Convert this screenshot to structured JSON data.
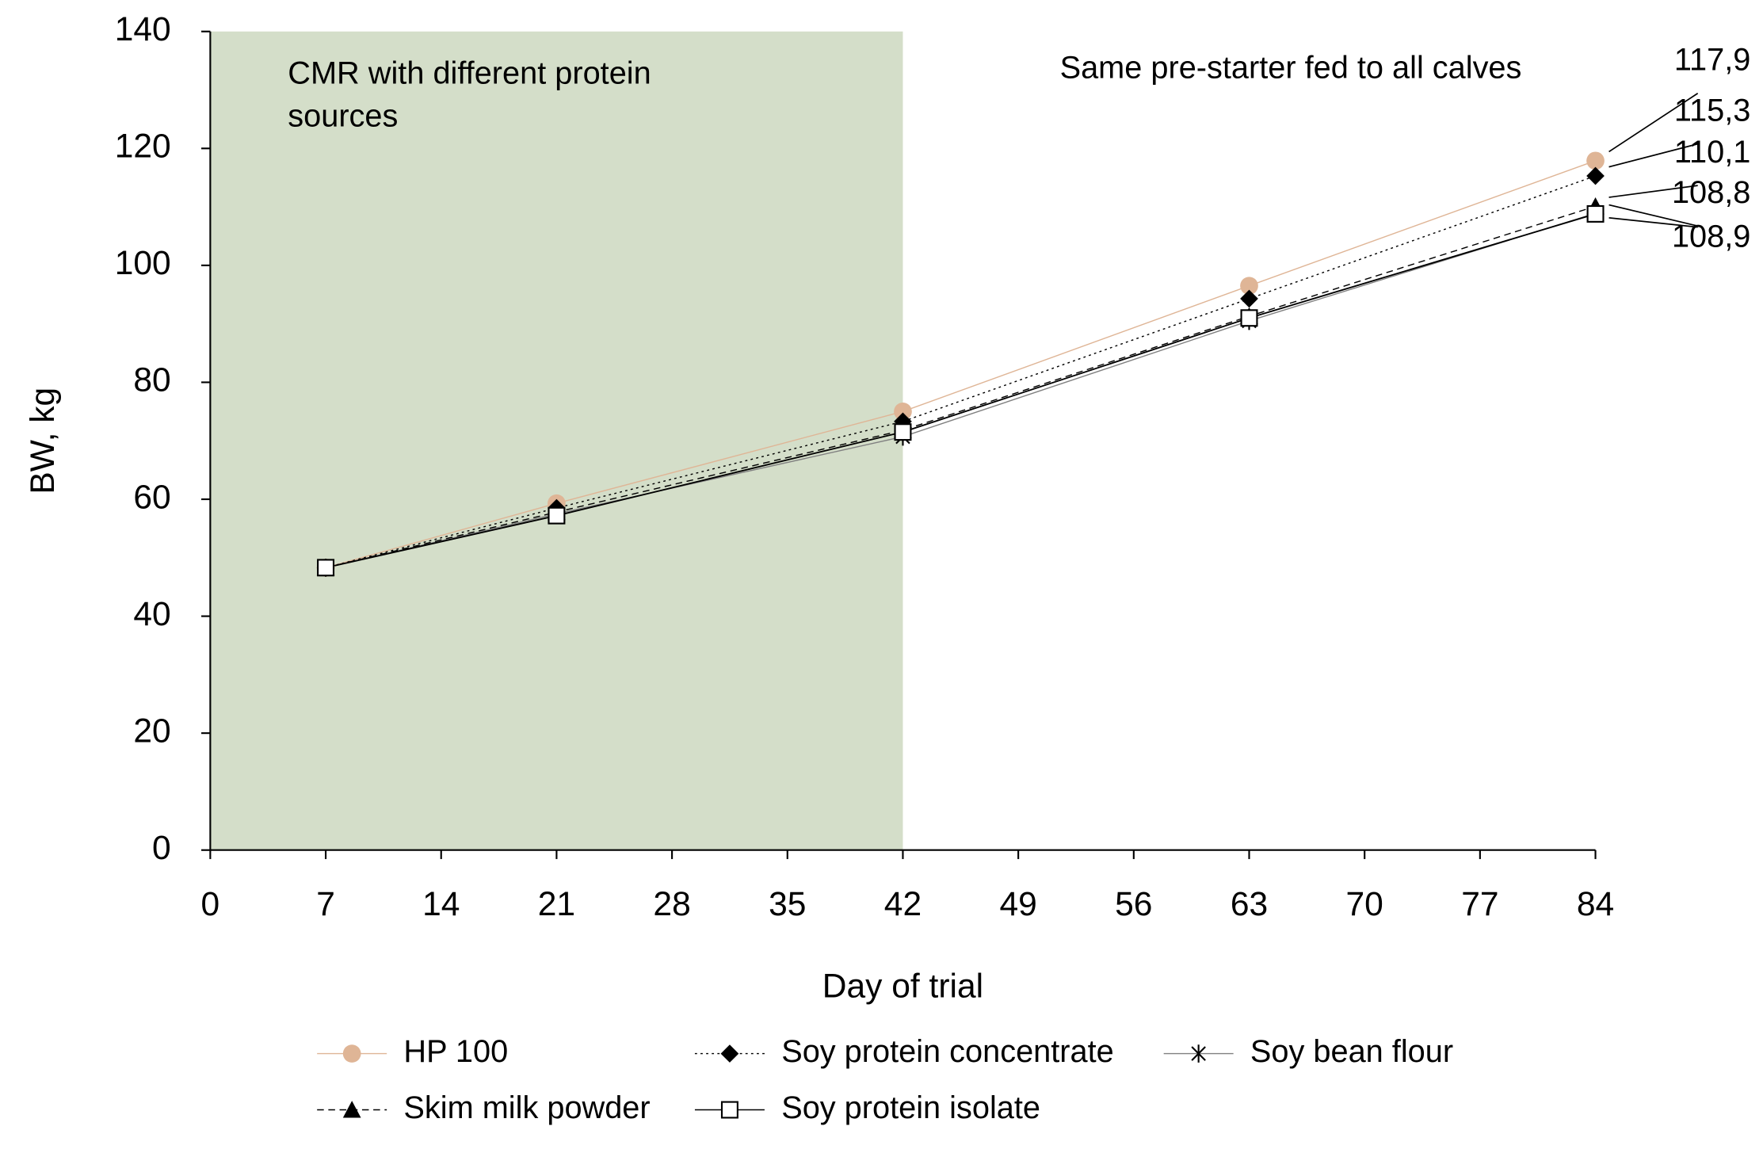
{
  "chart_data": {
    "type": "line",
    "x_label": "Day of trial",
    "y_label": "BW, kg",
    "x": [
      7,
      21,
      42,
      63,
      84
    ],
    "series": [
      {
        "name": "HP 100",
        "color": "#dfb596",
        "marker": "circle",
        "dash": "solid",
        "values": [
          48.3,
          59.3,
          75,
          96.5,
          117.9
        ],
        "value_labels": [
          null,
          null,
          null,
          null,
          "117,9"
        ]
      },
      {
        "name": "Soy protein concentrate",
        "color": "#000000",
        "marker": "diamond",
        "dash": "dotted",
        "values": [
          48.3,
          58.5,
          73.3,
          94.3,
          115.3
        ],
        "value_labels": [
          null,
          null,
          null,
          null,
          "115,3"
        ]
      },
      {
        "name": "Soy bean flour",
        "color": "#808080",
        "marker": "asterisk",
        "dash": "solid",
        "values": [
          48.3,
          57.5,
          70.7,
          90.5,
          108.9
        ],
        "value_labels": [
          null,
          null,
          null,
          null,
          "108,9"
        ]
      },
      {
        "name": "Skim milk powder",
        "color": "#000000",
        "marker": "triangle",
        "dash": "dashed",
        "values": [
          48.3,
          57.8,
          71.8,
          91.3,
          110.1
        ],
        "value_labels": [
          null,
          null,
          null,
          null,
          "110,1"
        ]
      },
      {
        "name": "Soy protein isolate",
        "color": "#000000",
        "marker": "square",
        "dash": "solid",
        "values": [
          48.3,
          57.2,
          71.5,
          91,
          108.8
        ],
        "value_labels": [
          null,
          null,
          null,
          null,
          "108,8"
        ]
      }
    ],
    "xlim": [
      0,
      84
    ],
    "xticks": [
      0,
      7,
      14,
      21,
      28,
      35,
      42,
      49,
      56,
      63,
      70,
      77,
      84
    ],
    "ylim": [
      0,
      140
    ],
    "yticks": [
      0,
      20,
      40,
      60,
      80,
      100,
      120,
      140
    ],
    "shaded_region": {
      "xlim": [
        0,
        42
      ],
      "color": "#d4dec9",
      "text": [
        "CMR with different protein",
        "sources"
      ]
    },
    "annotation": "Same pre-starter fed to all calves",
    "legend": "bottom"
  }
}
